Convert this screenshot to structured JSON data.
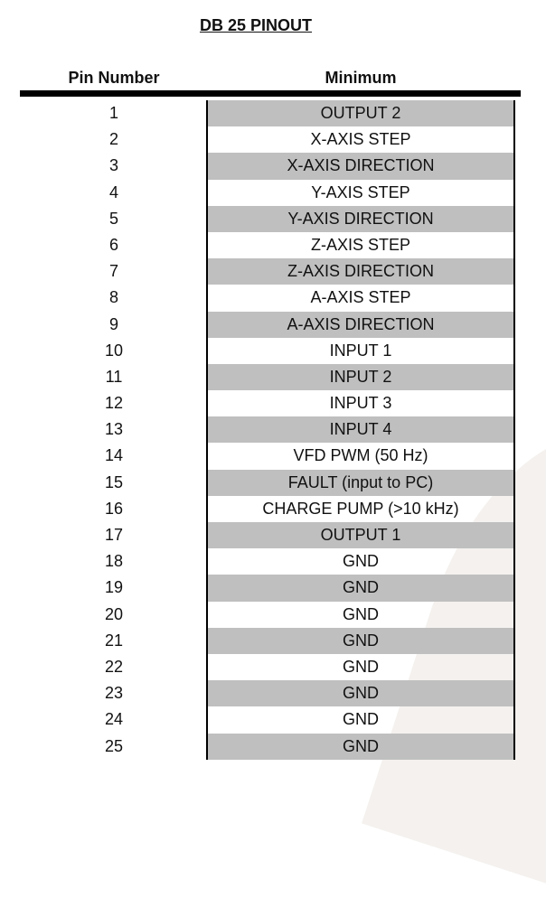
{
  "title": "DB 25 PINOUT",
  "columns": {
    "pin": "Pin Number",
    "value": "Minimum"
  },
  "rows": [
    {
      "pin": "1",
      "value": "OUTPUT 2"
    },
    {
      "pin": "2",
      "value": "X-AXIS STEP"
    },
    {
      "pin": "3",
      "value": "X-AXIS DIRECTION"
    },
    {
      "pin": "4",
      "value": "Y-AXIS STEP"
    },
    {
      "pin": "5",
      "value": "Y-AXIS DIRECTION"
    },
    {
      "pin": "6",
      "value": "Z-AXIS STEP"
    },
    {
      "pin": "7",
      "value": "Z-AXIS DIRECTION"
    },
    {
      "pin": "8",
      "value": "A-AXIS STEP"
    },
    {
      "pin": "9",
      "value": "A-AXIS DIRECTION"
    },
    {
      "pin": "10",
      "value": "INPUT 1"
    },
    {
      "pin": "11",
      "value": "INPUT 2"
    },
    {
      "pin": "12",
      "value": "INPUT 3"
    },
    {
      "pin": "13",
      "value": "INPUT 4"
    },
    {
      "pin": "14",
      "value": "VFD PWM (50 Hz)"
    },
    {
      "pin": "15",
      "value": "FAULT (input to PC)"
    },
    {
      "pin": "16",
      "value": "CHARGE PUMP (>10 kHz)"
    },
    {
      "pin": "17",
      "value": "OUTPUT 1"
    },
    {
      "pin": "18",
      "value": "GND"
    },
    {
      "pin": "19",
      "value": "GND"
    },
    {
      "pin": "20",
      "value": "GND"
    },
    {
      "pin": "21",
      "value": "GND"
    },
    {
      "pin": "22",
      "value": "GND"
    },
    {
      "pin": "23",
      "value": "GND"
    },
    {
      "pin": "24",
      "value": "GND"
    },
    {
      "pin": "25",
      "value": "GND"
    }
  ],
  "colors": {
    "stripe": "#bfbfbf",
    "rule": "#000000"
  }
}
